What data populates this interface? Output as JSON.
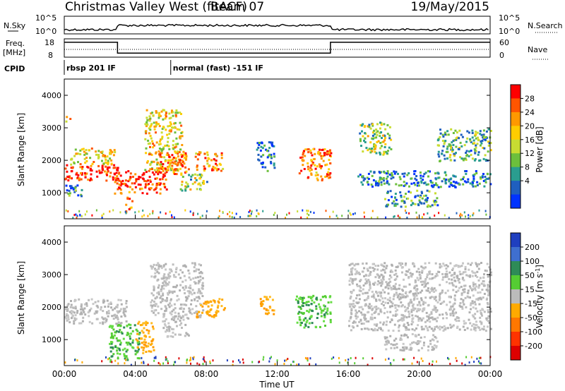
{
  "header": {
    "title": "Christmas Valley West (fitACF)",
    "beam": "Beam 07",
    "date": "19/May/2015"
  },
  "summary": {
    "nsky_label": "N.Sky",
    "nsky_ticks": [
      "10^5",
      "10^0"
    ],
    "nsearch_label": "N.Search",
    "nsearch_ticks": [
      "10^5",
      "10^0"
    ],
    "freq_label": "Freq.",
    "freq_unit": "[MHz]",
    "freq_ticks": [
      "18",
      "8"
    ],
    "nave_label": "Nave",
    "nave_ticks": [
      "60",
      "0"
    ],
    "cpid_label": "CPID",
    "cpid_segments": [
      {
        "label": "rbsp 201 IF",
        "start_hour": 0
      },
      {
        "label": "normal (fast) -151 IF",
        "start_hour": 6.0
      }
    ],
    "freq_steps": [
      {
        "from_hour": 0,
        "to_hour": 3.0,
        "mhz": 17.5
      },
      {
        "from_hour": 3.0,
        "to_hour": 15.0,
        "mhz": 9.0
      },
      {
        "from_hour": 15.0,
        "to_hour": 24.0,
        "mhz": 17.5
      }
    ]
  },
  "chart_data": [
    {
      "type": "heatmap",
      "name": "power-panel",
      "ylabel": "Slant Range [km]",
      "yticks": [
        "1000",
        "2000",
        "3000",
        "4000"
      ],
      "ylim": [
        200,
        4500
      ],
      "xlim_hours": [
        0,
        24
      ],
      "colorbar": {
        "label": "Power [dB]",
        "ticks": [
          "28",
          "24",
          "20",
          "16",
          "12",
          "8",
          "4"
        ],
        "colors": [
          "#ff0000",
          "#ff5500",
          "#ff9900",
          "#ffcc00",
          "#c8dc32",
          "#6cbf3c",
          "#2a9d8f",
          "#1f5fbf",
          "#0033ff"
        ]
      },
      "regions": [
        {
          "t": [
            0.0,
            0.3
          ],
          "r": [
            3200,
            3400
          ],
          "level": 0.6
        },
        {
          "t": [
            0.0,
            3.0
          ],
          "r": [
            1400,
            1900
          ],
          "level": 0.95
        },
        {
          "t": [
            0.3,
            2.8
          ],
          "r": [
            1900,
            2400
          ],
          "level": 0.55
        },
        {
          "t": [
            0.0,
            1.0
          ],
          "r": [
            900,
            1300
          ],
          "level": 0.3
        },
        {
          "t": [
            2.8,
            5.8
          ],
          "r": [
            1000,
            1700
          ],
          "level": 0.9
        },
        {
          "t": [
            3.4,
            3.8
          ],
          "r": [
            400,
            900
          ],
          "level": 0.85
        },
        {
          "t": [
            4.5,
            6.6
          ],
          "r": [
            1700,
            3600
          ],
          "level": 0.6
        },
        {
          "t": [
            5.2,
            7.0
          ],
          "r": [
            1600,
            2300
          ],
          "level": 0.8
        },
        {
          "t": [
            6.5,
            8.0
          ],
          "r": [
            1100,
            1600
          ],
          "level": 0.45
        },
        {
          "t": [
            7.3,
            8.9
          ],
          "r": [
            1700,
            2300
          ],
          "level": 0.7
        },
        {
          "t": [
            10.8,
            11.8
          ],
          "r": [
            1700,
            2600
          ],
          "level": 0.15
        },
        {
          "t": [
            13.2,
            15.0
          ],
          "r": [
            1400,
            2400
          ],
          "level": 0.8
        },
        {
          "t": [
            16.6,
            18.4
          ],
          "r": [
            2200,
            3200
          ],
          "level": 0.45
        },
        {
          "t": [
            16.5,
            24.0
          ],
          "r": [
            1200,
            1700
          ],
          "level": 0.2
        },
        {
          "t": [
            18.0,
            21.0
          ],
          "r": [
            600,
            1100
          ],
          "level": 0.3
        },
        {
          "t": [
            21.0,
            24.0
          ],
          "r": [
            2000,
            3000
          ],
          "level": 0.35
        }
      ]
    },
    {
      "type": "heatmap",
      "name": "velocity-panel",
      "ylabel": "Slant Range [km]",
      "yticks": [
        "1000",
        "2000",
        "3000",
        "4000"
      ],
      "ylim": [
        200,
        4500
      ],
      "xlim_hours": [
        0,
        24
      ],
      "xlabel": "Time UT",
      "xticks": [
        "00:00",
        "04:00",
        "08:00",
        "12:00",
        "16:00",
        "20:00",
        "00:00"
      ],
      "colorbar": {
        "label": "Velocity [m s",
        "label_sup": "-1",
        "label_end": "]",
        "ticks": [
          "200",
          "100",
          "50",
          "15",
          "-15",
          "-50",
          "-100",
          "-200"
        ],
        "colors": [
          "#1f3fbf",
          "#3f6fcf",
          "#2e8b57",
          "#55cc33",
          "#bbbbbb",
          "#ffaa00",
          "#ff7700",
          "#ff3300",
          "#dd0000"
        ]
      },
      "regions": [
        {
          "t": [
            0.0,
            3.5
          ],
          "r": [
            1500,
            2300
          ],
          "kind": "gray"
        },
        {
          "t": [
            2.5,
            4.2
          ],
          "r": [
            400,
            1500
          ],
          "kind": "green"
        },
        {
          "t": [
            4.0,
            5.0
          ],
          "r": [
            600,
            1600
          ],
          "kind": "orange"
        },
        {
          "t": [
            4.8,
            7.8
          ],
          "r": [
            1700,
            3400
          ],
          "kind": "gray"
        },
        {
          "t": [
            5.5,
            7.0
          ],
          "r": [
            1100,
            1700
          ],
          "kind": "gray"
        },
        {
          "t": [
            7.4,
            9.0
          ],
          "r": [
            1700,
            2300
          ],
          "kind": "orange"
        },
        {
          "t": [
            11.0,
            11.8
          ],
          "r": [
            1800,
            2400
          ],
          "kind": "orange"
        },
        {
          "t": [
            13.0,
            15.0
          ],
          "r": [
            1400,
            2400
          ],
          "kind": "green"
        },
        {
          "t": [
            16.0,
            24.0
          ],
          "r": [
            1300,
            3400
          ],
          "kind": "gray"
        },
        {
          "t": [
            18.0,
            21.0
          ],
          "r": [
            700,
            1200
          ],
          "kind": "gray"
        }
      ]
    }
  ]
}
